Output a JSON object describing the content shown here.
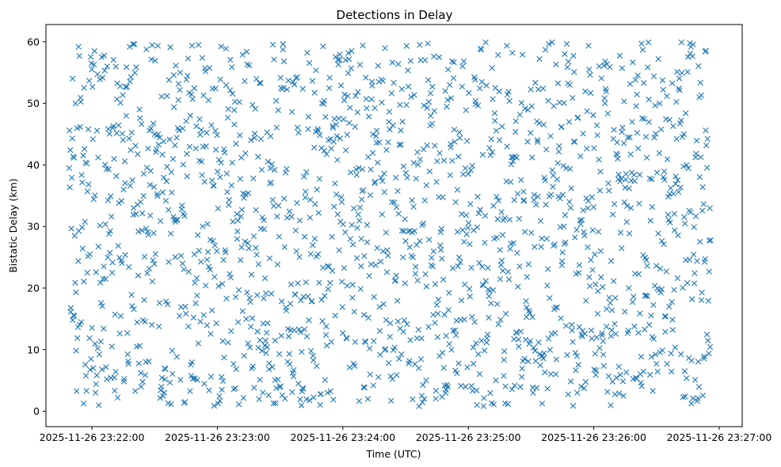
{
  "chart_data": {
    "type": "scatter",
    "title": "Detections in Delay",
    "xlabel": "Time (UTC)",
    "ylabel": "Bistatic Delay (km)",
    "x_start": "2025-11-26 23:21:49",
    "x_end": "2025-11-26 23:26:56",
    "xlim": [
      "2025-11-26 23:21:38",
      "2025-11-26 23:27:11"
    ],
    "ylim": [
      -2.5,
      62.8
    ],
    "x_ticks": [
      "2025-11-26 23:22:00",
      "2025-11-26 23:23:00",
      "2025-11-26 23:24:00",
      "2025-11-26 23:25:00",
      "2025-11-26 23:26:00",
      "2025-11-26 23:27:00"
    ],
    "y_ticks": [
      0,
      10,
      20,
      30,
      40,
      50,
      60
    ],
    "marker": "x",
    "point_count": 1700,
    "delay_range_km": [
      0.5,
      60
    ],
    "color": "#1f77b4",
    "grid": false
  }
}
